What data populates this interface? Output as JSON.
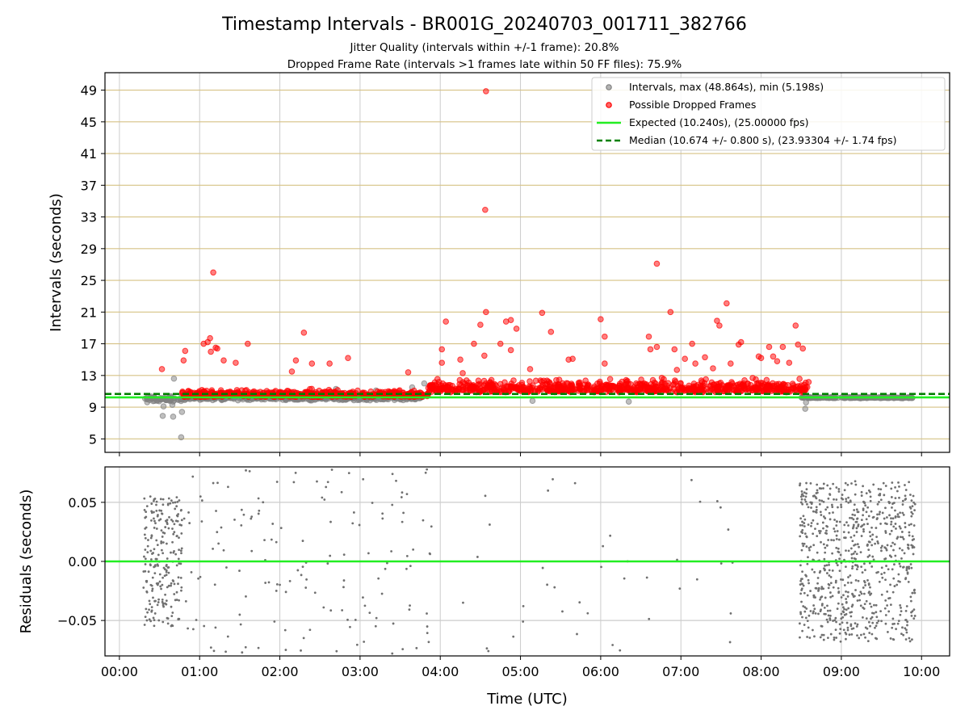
{
  "chart_data": {
    "title": "Timestamp Intervals - BR001G_20240703_001711_382766",
    "subtitle_1": "Jitter Quality (intervals within +/-1 frame): 20.8%",
    "subtitle_2": "Dropped Frame Rate (intervals >1 frames late within 50 FF files): 75.9%",
    "xlabel": "Time (UTC)",
    "x_ticks": [
      "00:00",
      "01:00",
      "02:00",
      "03:00",
      "04:00",
      "05:00",
      "06:00",
      "07:00",
      "08:00",
      "09:00",
      "10:00"
    ],
    "xlim_hours": [
      -0.18,
      10.35
    ],
    "panels": [
      {
        "name": "intervals",
        "type": "scatter",
        "ylabel": "Intervals (seconds)",
        "ylim": [
          3.3,
          51.2
        ],
        "y_ticks": [
          5,
          9,
          13,
          17,
          21,
          25,
          29,
          33,
          37,
          41,
          45,
          49
        ],
        "grid": true,
        "legend_position": "top-right",
        "reference_lines": [
          {
            "name": "Expected (10.240s), (25.00000 fps)",
            "y": 10.24,
            "style": "solid",
            "color": "#22ee22"
          },
          {
            "name": "Median (10.674 +/- 0.800 s), (23.93304 +/- 1.74 fps)",
            "y": 10.674,
            "style": "dashed",
            "color": "#008000"
          }
        ],
        "series": [
          {
            "name": "Intervals, max (48.864s), min (5.198s)",
            "color": "#808080",
            "bands": [
              {
                "x_range": [
                  0.3,
                  0.78
                ],
                "y_center": 10.0,
                "y_spread": 0.5,
                "count": 60
              },
              {
                "x_range": [
                  0.75,
                  3.8
                ],
                "y_center": 10.15,
                "y_spread": 0.35,
                "count": 380
              },
              {
                "x_range": [
                  8.5,
                  9.9
                ],
                "y_center": 10.2,
                "y_spread": 0.1,
                "count": 180
              }
            ],
            "points": [
              {
                "x": 0.77,
                "y": 5.2
              },
              {
                "x": 0.54,
                "y": 7.9
              },
              {
                "x": 0.67,
                "y": 7.8
              },
              {
                "x": 0.78,
                "y": 8.4
              },
              {
                "x": 0.55,
                "y": 9.1
              },
              {
                "x": 0.66,
                "y": 9.3
              },
              {
                "x": 0.68,
                "y": 12.6
              },
              {
                "x": 3.65,
                "y": 11.5
              },
              {
                "x": 3.8,
                "y": 12.0
              },
              {
                "x": 8.55,
                "y": 8.8
              },
              {
                "x": 8.56,
                "y": 9.6
              },
              {
                "x": 5.15,
                "y": 9.8
              },
              {
                "x": 6.35,
                "y": 9.7
              },
              {
                "x": 3.2,
                "y": 11.1
              },
              {
                "x": 2.7,
                "y": 11.3
              }
            ]
          },
          {
            "name": "Possible Dropped Frames",
            "color": "#ff0000",
            "bands": [
              {
                "x_range": [
                  0.78,
                  3.85
                ],
                "y_center": 10.7,
                "y_spread": 0.9,
                "count": 520
              },
              {
                "x_range": [
                  3.85,
                  8.6
                ],
                "y_center": 11.6,
                "y_spread": 1.6,
                "count": 760
              }
            ],
            "points": [
              {
                "x": 4.57,
                "y": 48.864
              },
              {
                "x": 4.56,
                "y": 33.9
              },
              {
                "x": 1.17,
                "y": 26.0
              },
              {
                "x": 6.7,
                "y": 27.1
              },
              {
                "x": 7.57,
                "y": 22.1
              },
              {
                "x": 4.57,
                "y": 21.0
              },
              {
                "x": 6.87,
                "y": 21.0
              },
              {
                "x": 5.27,
                "y": 20.9
              },
              {
                "x": 6.0,
                "y": 20.1
              },
              {
                "x": 4.07,
                "y": 19.8
              },
              {
                "x": 4.82,
                "y": 19.8
              },
              {
                "x": 4.88,
                "y": 20.0
              },
              {
                "x": 7.45,
                "y": 19.9
              },
              {
                "x": 7.48,
                "y": 19.3
              },
              {
                "x": 8.43,
                "y": 19.3
              },
              {
                "x": 4.5,
                "y": 19.4
              },
              {
                "x": 4.95,
                "y": 18.9
              },
              {
                "x": 2.3,
                "y": 18.4
              },
              {
                "x": 5.38,
                "y": 18.5
              },
              {
                "x": 6.6,
                "y": 17.9
              },
              {
                "x": 6.05,
                "y": 17.9
              },
              {
                "x": 1.13,
                "y": 17.7
              },
              {
                "x": 1.1,
                "y": 17.2
              },
              {
                "x": 1.05,
                "y": 17.0
              },
              {
                "x": 1.6,
                "y": 17.0
              },
              {
                "x": 4.42,
                "y": 17.0
              },
              {
                "x": 4.75,
                "y": 17.0
              },
              {
                "x": 7.14,
                "y": 17.0
              },
              {
                "x": 7.75,
                "y": 17.2
              },
              {
                "x": 7.72,
                "y": 16.9
              },
              {
                "x": 8.46,
                "y": 16.9
              },
              {
                "x": 1.2,
                "y": 16.5
              },
              {
                "x": 1.22,
                "y": 16.4
              },
              {
                "x": 1.14,
                "y": 16.0
              },
              {
                "x": 0.82,
                "y": 16.1
              },
              {
                "x": 8.52,
                "y": 16.4
              },
              {
                "x": 8.1,
                "y": 16.6
              },
              {
                "x": 8.27,
                "y": 16.6
              },
              {
                "x": 6.62,
                "y": 16.3
              },
              {
                "x": 6.7,
                "y": 16.6
              },
              {
                "x": 6.92,
                "y": 16.3
              },
              {
                "x": 4.02,
                "y": 16.3
              },
              {
                "x": 4.88,
                "y": 16.2
              },
              {
                "x": 4.55,
                "y": 15.5
              },
              {
                "x": 2.85,
                "y": 15.2
              },
              {
                "x": 7.97,
                "y": 15.4
              },
              {
                "x": 8.0,
                "y": 15.2
              },
              {
                "x": 8.15,
                "y": 15.4
              },
              {
                "x": 7.3,
                "y": 15.3
              },
              {
                "x": 7.05,
                "y": 15.1
              },
              {
                "x": 5.65,
                "y": 15.1
              },
              {
                "x": 5.6,
                "y": 15.0
              },
              {
                "x": 0.8,
                "y": 14.9
              },
              {
                "x": 1.3,
                "y": 14.9
              },
              {
                "x": 2.2,
                "y": 14.9
              },
              {
                "x": 2.4,
                "y": 14.5
              },
              {
                "x": 1.45,
                "y": 14.6
              },
              {
                "x": 2.62,
                "y": 14.5
              },
              {
                "x": 4.02,
                "y": 14.6
              },
              {
                "x": 4.25,
                "y": 15.0
              },
              {
                "x": 6.05,
                "y": 14.5
              },
              {
                "x": 7.18,
                "y": 14.5
              },
              {
                "x": 7.62,
                "y": 14.5
              },
              {
                "x": 8.2,
                "y": 14.8
              },
              {
                "x": 8.35,
                "y": 14.6
              },
              {
                "x": 0.53,
                "y": 13.8
              },
              {
                "x": 2.15,
                "y": 13.5
              },
              {
                "x": 3.6,
                "y": 13.4
              },
              {
                "x": 4.28,
                "y": 13.3
              },
              {
                "x": 5.12,
                "y": 13.8
              },
              {
                "x": 6.95,
                "y": 13.7
              },
              {
                "x": 7.4,
                "y": 13.9
              }
            ]
          }
        ]
      },
      {
        "name": "residuals",
        "type": "scatter",
        "ylabel": "Residuals (seconds)",
        "ylim": [
          -0.08,
          0.08
        ],
        "y_ticks": [
          -0.05,
          0.0,
          0.05
        ],
        "y_tick_labels": [
          "−0.05",
          "0.00",
          "0.05"
        ],
        "grid": true,
        "reference_lines": [
          {
            "name": "zero",
            "y": 0.0,
            "style": "solid",
            "color": "#22ee22"
          }
        ],
        "series": [
          {
            "name": "residuals",
            "color": "#707070",
            "bands": [
              {
                "x_range": [
                  0.3,
                  0.78
                ],
                "y_center": 0.0,
                "y_spread": 0.055,
                "count": 230
              },
              {
                "x_range": [
                  0.8,
                  3.9
                ],
                "y_center": 0.0,
                "y_spread": 0.078,
                "count": 150
              },
              {
                "x_range": [
                  4.2,
                  7.7
                ],
                "y_center": 0.0,
                "y_spread": 0.078,
                "count": 40
              },
              {
                "x_range": [
                  8.48,
                  9.92
                ],
                "y_center": 0.0,
                "y_spread": 0.068,
                "count": 750
              }
            ],
            "points": []
          }
        ]
      }
    ],
    "legend": [
      {
        "label": "Intervals, max (48.864s), min (5.198s)",
        "marker": "dot",
        "color": "#808080"
      },
      {
        "label": "Possible Dropped Frames",
        "marker": "dot",
        "color": "#ff0000"
      },
      {
        "label": "Expected (10.240s), (25.00000 fps)",
        "marker": "line",
        "color": "#22ee22"
      },
      {
        "label": "Median (10.674 +/- 0.800 s), (23.93304 +/- 1.74 fps)",
        "marker": "dashed",
        "color": "#008000"
      }
    ]
  }
}
